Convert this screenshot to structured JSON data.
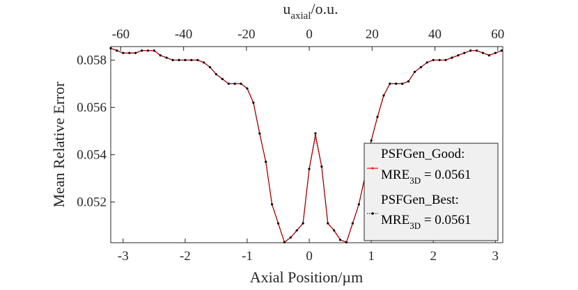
{
  "chart_data": {
    "type": "line",
    "xlabel": "Axial Position/µm",
    "ylabel": "Mean Relative Error",
    "top_xlabel": {
      "main": "u",
      "sub": "axial",
      "rest": "/o.u."
    },
    "xlim": [
      -3.2,
      3.12
    ],
    "ylim": [
      0.05028,
      0.05857
    ],
    "top_xlim": [
      -63.2,
      61.6
    ],
    "x_ticks": [
      -3,
      -2,
      -1,
      0,
      1,
      2,
      3
    ],
    "x_tick_labels": [
      "-3",
      "-2",
      "-1",
      "0",
      "1",
      "2",
      "3"
    ],
    "y_ticks": [
      0.052,
      0.054,
      0.056,
      0.058
    ],
    "y_tick_labels": [
      "0.052",
      "0.054",
      "0.056",
      "0.058"
    ],
    "top_ticks": [
      -60,
      -40,
      -20,
      0,
      20,
      40,
      60
    ],
    "top_tick_labels": [
      "-60",
      "-40",
      "-20",
      "0",
      "20",
      "40",
      "60"
    ],
    "grid": false,
    "legend_position": "right",
    "x": [
      -3.2,
      -3.1,
      -3.0,
      -2.9,
      -2.8,
      -2.7,
      -2.6,
      -2.5,
      -2.4,
      -2.3,
      -2.2,
      -2.1,
      -2.0,
      -1.9,
      -1.8,
      -1.7,
      -1.6,
      -1.5,
      -1.4,
      -1.3,
      -1.2,
      -1.1,
      -1.0,
      -0.9,
      -0.8,
      -0.7,
      -0.6,
      -0.5,
      -0.4,
      -0.3,
      -0.2,
      -0.1,
      0.0,
      0.1,
      0.2,
      0.3,
      0.4,
      0.5,
      0.6,
      0.7,
      0.8,
      0.9,
      1.0,
      1.1,
      1.2,
      1.3,
      1.4,
      1.5,
      1.6,
      1.7,
      1.8,
      1.9,
      2.0,
      2.1,
      2.2,
      2.3,
      2.4,
      2.5,
      2.6,
      2.7,
      2.8,
      2.9,
      3.0,
      3.1
    ],
    "series": [
      {
        "name": "PSFGen_Good:",
        "color": "#ff0000",
        "values": [
          0.0585,
          0.0584,
          0.0583,
          0.0583,
          0.0583,
          0.0584,
          0.0584,
          0.0584,
          0.0582,
          0.0581,
          0.058,
          0.058,
          0.058,
          0.058,
          0.058,
          0.0579,
          0.0577,
          0.0574,
          0.0572,
          0.057,
          0.057,
          0.057,
          0.0568,
          0.0562,
          0.0549,
          0.0537,
          0.0519,
          0.0511,
          0.0503,
          0.0505,
          0.0508,
          0.0511,
          0.0534,
          0.0548,
          0.0535,
          0.0511,
          0.0508,
          0.0504,
          0.0503,
          0.0511,
          0.0519,
          0.0531,
          0.0546,
          0.0556,
          0.0565,
          0.057,
          0.057,
          0.057,
          0.0571,
          0.0575,
          0.0577,
          0.0579,
          0.058,
          0.058,
          0.058,
          0.0581,
          0.0582,
          0.0583,
          0.0584,
          0.0584,
          0.0583,
          0.0582,
          0.0583,
          0.0584
        ]
      },
      {
        "name": "PSFGen_Best:",
        "color": "#000000",
        "values": [
          0.0585,
          0.0584,
          0.0583,
          0.0583,
          0.0583,
          0.0584,
          0.0584,
          0.0584,
          0.0582,
          0.0581,
          0.058,
          0.058,
          0.058,
          0.058,
          0.058,
          0.0579,
          0.0577,
          0.0574,
          0.0572,
          0.057,
          0.057,
          0.057,
          0.0568,
          0.0562,
          0.0549,
          0.0537,
          0.0519,
          0.0511,
          0.0503,
          0.0505,
          0.0508,
          0.0511,
          0.0534,
          0.0549,
          0.0535,
          0.0511,
          0.0508,
          0.0504,
          0.0503,
          0.0511,
          0.0519,
          0.0531,
          0.0546,
          0.0556,
          0.0565,
          0.057,
          0.057,
          0.057,
          0.0571,
          0.0575,
          0.0577,
          0.0579,
          0.058,
          0.058,
          0.058,
          0.0581,
          0.0582,
          0.0583,
          0.0584,
          0.0584,
          0.0583,
          0.0582,
          0.0583,
          0.0584
        ]
      }
    ],
    "legend": [
      {
        "name": "PSFGen_Good:",
        "mre_main": "MRE",
        "mre_sub": "3D",
        "mre_value": " = 0.0561"
      },
      {
        "name": "PSFGen_Best:",
        "mre_main": "MRE",
        "mre_sub": "3D",
        "mre_value": " = 0.0561"
      }
    ]
  }
}
